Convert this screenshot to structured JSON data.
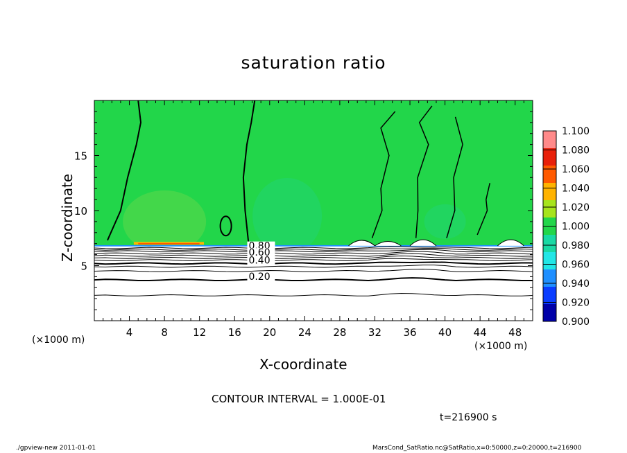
{
  "chart_data": {
    "type": "heatmap",
    "title": "saturation ratio",
    "xlabel": "X-coordinate",
    "ylabel": "Z-coordinate",
    "x_unit_label_left": "(×1000 m)",
    "x_unit_label_right": "(×1000 m)",
    "xlim": [
      0,
      50
    ],
    "ylim": [
      0,
      20
    ],
    "x_ticks": [
      4,
      8,
      12,
      16,
      20,
      24,
      28,
      32,
      36,
      40,
      44,
      48
    ],
    "y_ticks": [
      5,
      10,
      15
    ],
    "colorbar": {
      "levels": [
        "0.900",
        "0.920",
        "0.940",
        "0.960",
        "0.980",
        "1.000",
        "1.020",
        "1.040",
        "1.060",
        "1.080",
        "1.100"
      ],
      "colors": [
        "#6a0dad",
        "#0000a8",
        "#0a3dff",
        "#1f8fff",
        "#22e6e6",
        "#19d9a4",
        "#22d64a",
        "#a7e41c",
        "#ffb300",
        "#ff5a00",
        "#e8200a",
        "#ff8a8a"
      ]
    },
    "contour_labels": [
      {
        "label": "0.80",
        "x": 17.6,
        "z": 6.5
      },
      {
        "label": "0.60",
        "x": 17.6,
        "z": 5.9
      },
      {
        "label": "0.40",
        "x": 17.6,
        "z": 5.2
      },
      {
        "label": "0.20",
        "x": 17.6,
        "z": 3.7
      }
    ],
    "saturated_layer_base_z": 6.8,
    "regions": [
      {
        "name": "upper layer",
        "z_range": [
          6.8,
          20
        ],
        "value": 1.0
      },
      {
        "name": "warm patch",
        "x_range": [
          4.5,
          12.5
        ],
        "z_range": [
          6.8,
          7.2
        ],
        "value": 1.06
      },
      {
        "name": "lower layer",
        "z_range": [
          0,
          6.5
        ],
        "value": 0.2
      }
    ]
  },
  "annotations": {
    "contour_interval": "CONTOUR INTERVAL = 1.000E-01",
    "time": "t=216900 s"
  },
  "footer": {
    "left": "./gpview-new  2011-01-01",
    "right": "MarsCond_SatRatio.nc@SatRatio,x=0:50000,z=0:20000,t=216900"
  }
}
